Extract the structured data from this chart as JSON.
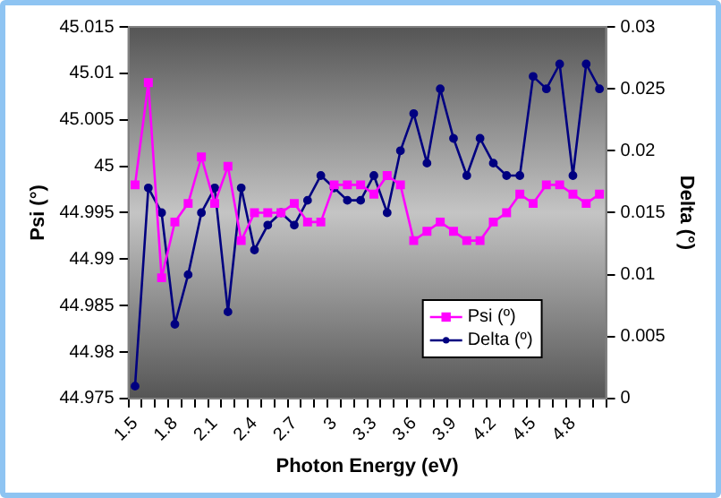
{
  "chart_data": {
    "type": "line",
    "xlabel": "Photon Energy (eV)",
    "ylabel": "Psi (°)",
    "y2label": "Delta (°)",
    "categories": [
      "1.5",
      null,
      null,
      "1.8",
      null,
      null,
      "2.1",
      null,
      null,
      "2.4",
      null,
      null,
      "2.7",
      null,
      null,
      "3",
      null,
      null,
      "3.3",
      null,
      null,
      "3.6",
      null,
      null,
      "3.9",
      null,
      null,
      "4.2",
      null,
      null,
      "4.5",
      null,
      null,
      "4.8",
      null,
      null
    ],
    "series": [
      {
        "name": "Psi (º)",
        "color": "#ff00ff",
        "marker": "square",
        "values": [
          44.998,
          45.009,
          44.988,
          44.994,
          44.996,
          45.001,
          44.996,
          45.0,
          44.992,
          44.995,
          44.995,
          44.995,
          44.996,
          44.994,
          44.994,
          44.998,
          44.998,
          44.998,
          44.997,
          44.999,
          44.998,
          44.992,
          44.993,
          44.994,
          44.993,
          44.992,
          44.992,
          44.994,
          44.995,
          44.997,
          44.996,
          44.998,
          44.998,
          44.997,
          44.996,
          44.997
        ]
      },
      {
        "name": "Delta (º)",
        "color": "#000080",
        "marker": "circle",
        "axis": "y2",
        "values": [
          0.001,
          0.017,
          0.015,
          0.006,
          0.01,
          0.015,
          0.017,
          0.007,
          0.017,
          0.012,
          0.014,
          0.015,
          0.014,
          0.016,
          0.018,
          0.017,
          0.016,
          0.016,
          0.018,
          0.015,
          0.02,
          0.023,
          0.019,
          0.025,
          0.021,
          0.018,
          0.021,
          0.019,
          0.018,
          0.018,
          0.026,
          0.025,
          0.027,
          0.018,
          0.027,
          0.025
        ]
      }
    ],
    "ylim": [
      44.975,
      45.015
    ],
    "yticks": [
      44.975,
      44.98,
      44.985,
      44.99,
      44.995,
      45,
      45.005,
      45.01,
      45.015
    ],
    "y2lim": [
      0,
      0.03
    ],
    "y2ticks": [
      0,
      0.005,
      0.01,
      0.015,
      0.02,
      0.025,
      0.03
    ],
    "grid": false,
    "legend": "bottom right"
  }
}
